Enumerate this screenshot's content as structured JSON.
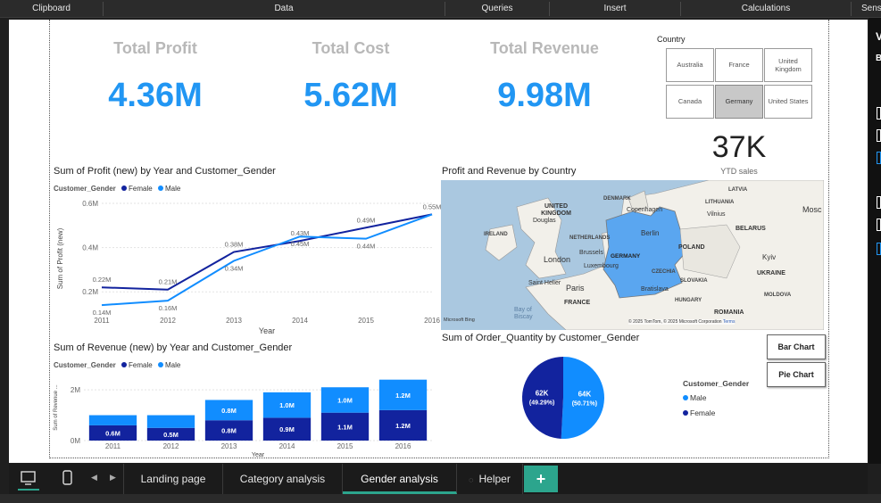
{
  "ribbon": {
    "items": [
      "Clipboard",
      "Data",
      "Queries",
      "Insert",
      "Calculations",
      "Sens"
    ]
  },
  "kpis": [
    {
      "label": "Total Profit",
      "value": "4.36M"
    },
    {
      "label": "Total Cost",
      "value": "5.62M"
    },
    {
      "label": "Total Revenue",
      "value": "9.98M"
    }
  ],
  "country_slicer": {
    "title": "Country",
    "options": [
      "Australia",
      "France",
      "United Kingdom",
      "Canada",
      "Germany",
      "United States"
    ],
    "selected": "Germany"
  },
  "ytd_card": {
    "value": "37K",
    "label": "YTD sales"
  },
  "colors": {
    "female": "#12239e",
    "male": "#118dff",
    "kpi": "#2196f3",
    "accent": "#2ca58d"
  },
  "profit_chart": {
    "title": "Sum of Profit (new) by Year and Customer_Gender",
    "legend_title": "Customer_Gender",
    "legend": [
      "Female",
      "Male"
    ],
    "ylabel": "Sum of Profit (new)",
    "xlabel": "Year",
    "yticks": [
      "0.6M",
      "0.4M",
      "0.2M"
    ]
  },
  "revenue_chart": {
    "title": "Sum of Revenue (new) by Year and Customer_Gender",
    "legend_title": "Customer_Gender",
    "legend": [
      "Female",
      "Male"
    ],
    "ylabel": "Sum of Revenue ...",
    "xlabel": "Year",
    "yticks": [
      "2M",
      "0M"
    ]
  },
  "map": {
    "title": "Profit and Revenue by Country",
    "labels": [
      "UNITED KINGDOM",
      "DENMARK",
      "IRELAND",
      "NETHERLANDS",
      "Berlin",
      "GERMANY",
      "POLAND",
      "London",
      "Paris",
      "FRANCE",
      "CZECHIA",
      "SLOVAKIA",
      "HUNGARY",
      "ROMANIA",
      "BELARUS",
      "UKRAINE",
      "LATVIA",
      "LITHUANIA",
      "Vilnius",
      "Copenhagen",
      "Brussels",
      "Luxembourg",
      "Bratislava",
      "Kyiv",
      "MOLDOVA",
      "Saint Helier",
      "Bay of Biscay",
      "Douglas",
      "Mosc"
    ],
    "attribution": "Microsoft Bing",
    "copyright": "© 2025 TomTom, © 2025 Microsoft Corporation",
    "terms": "Terms"
  },
  "pie_chart": {
    "title": "Sum of Order_Quantity by Customer_Gender",
    "legend_title": "Customer_Gender",
    "legend": [
      "Male",
      "Female"
    ]
  },
  "nav_buttons": {
    "bar": "Bar Chart",
    "pie": "Pie Chart"
  },
  "tabs": [
    "Landing page",
    "Category analysis",
    "Gender analysis",
    "Helper"
  ],
  "active_tab": "Gender analysis",
  "chart_data": [
    {
      "type": "line",
      "title": "Sum of Profit (new) by Year and Customer_Gender",
      "xlabel": "Year",
      "ylabel": "Sum of Profit (new)",
      "x": [
        2011,
        2012,
        2013,
        2014,
        2015,
        2016
      ],
      "ylim": [
        0.1,
        0.6
      ],
      "series": [
        {
          "name": "Female",
          "values": [
            0.22,
            0.21,
            0.38,
            0.43,
            0.49,
            0.55
          ],
          "labels": [
            "0.22M",
            "0.21M",
            "0.38M",
            "0.43M",
            "0.49M",
            "0.55M"
          ]
        },
        {
          "name": "Male",
          "values": [
            0.14,
            0.16,
            0.34,
            0.45,
            0.44,
            0.55
          ],
          "labels": [
            "0.14M",
            "0.16M",
            "0.34M",
            "0.45M",
            "0.44M",
            ""
          ]
        }
      ]
    },
    {
      "type": "bar",
      "title": "Sum of Revenue (new) by Year and Customer_Gender",
      "xlabel": "Year",
      "ylabel": "Sum of Revenue ...",
      "categories": [
        "2011",
        "2012",
        "2013",
        "2014",
        "2015",
        "2016"
      ],
      "ylim": [
        0,
        2.6
      ],
      "stacked": true,
      "series": [
        {
          "name": "Female",
          "values": [
            0.6,
            0.5,
            0.8,
            0.9,
            1.1,
            1.2
          ],
          "labels": [
            "0.6M",
            "0.5M",
            "0.8M",
            "0.9M",
            "1.1M",
            "1.2M"
          ]
        },
        {
          "name": "Male",
          "values": [
            0.4,
            0.5,
            0.8,
            1.0,
            1.0,
            1.2
          ],
          "labels": [
            "",
            "",
            "0.8M",
            "1.0M",
            "1.0M",
            "1.2M"
          ]
        }
      ]
    },
    {
      "type": "pie",
      "title": "Sum of Order_Quantity by Customer_Gender",
      "slices": [
        {
          "name": "Male",
          "value": 64,
          "label": "64K",
          "pct": "(50.71%)"
        },
        {
          "name": "Female",
          "value": 62,
          "label": "62K",
          "pct": "(49.29%)"
        }
      ]
    }
  ]
}
